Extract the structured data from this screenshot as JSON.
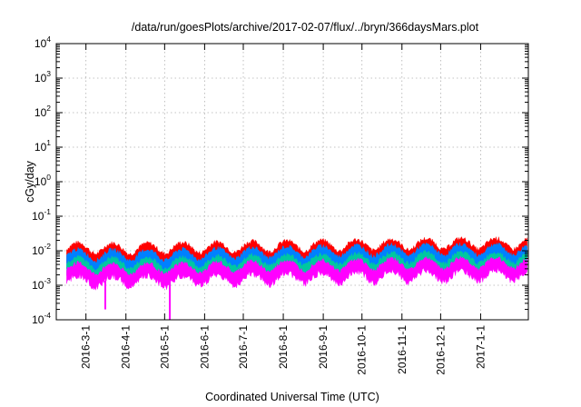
{
  "chart_data": {
    "type": "area",
    "title": "/data/run/goesPlots/archive/2017-02-07/flux/../bryn/366daysMars.plot",
    "xlabel": "Coordinated Universal Time (UTC)",
    "ylabel": "cGy/day",
    "yscale": "log",
    "ylim": [
      0.0001,
      10000
    ],
    "y_ticks": [
      {
        "base": "10",
        "exp": "-4",
        "value": 0.0001
      },
      {
        "base": "10",
        "exp": "-3",
        "value": 0.001
      },
      {
        "base": "10",
        "exp": "-2",
        "value": 0.01
      },
      {
        "base": "10",
        "exp": "-1",
        "value": 0.1
      },
      {
        "base": "10",
        "exp": "0",
        "value": 1
      },
      {
        "base": "10",
        "exp": "1",
        "value": 10
      },
      {
        "base": "10",
        "exp": "2",
        "value": 100
      },
      {
        "base": "10",
        "exp": "3",
        "value": 1000
      },
      {
        "base": "10",
        "exp": "4",
        "value": 10000
      }
    ],
    "xlim": [
      "2016-02-07",
      "2017-02-07"
    ],
    "x_ticks": [
      {
        "label": "2016-3-1",
        "date": "2016-03-01"
      },
      {
        "label": "2016-4-1",
        "date": "2016-04-01"
      },
      {
        "label": "2016-5-1",
        "date": "2016-05-01"
      },
      {
        "label": "2016-6-1",
        "date": "2016-06-01"
      },
      {
        "label": "2016-7-1",
        "date": "2016-07-01"
      },
      {
        "label": "2016-8-1",
        "date": "2016-08-01"
      },
      {
        "label": "2016-9-1",
        "date": "2016-09-01"
      },
      {
        "label": "2016-10-1",
        "date": "2016-10-01"
      },
      {
        "label": "2016-11-1",
        "date": "2016-11-01"
      },
      {
        "label": "2016-12-1",
        "date": "2016-12-01"
      },
      {
        "label": "2017-1-1",
        "date": "2017-01-01"
      }
    ],
    "grid": true,
    "series": [
      {
        "color": "#ff0000",
        "points": [
          [
            "2016-02-15",
            0.011
          ],
          [
            "2016-03-15",
            0.0105
          ],
          [
            "2016-04-15",
            0.0105
          ],
          [
            "2016-05-15",
            0.011
          ],
          [
            "2016-06-15",
            0.0115
          ],
          [
            "2016-07-15",
            0.012
          ],
          [
            "2016-08-15",
            0.0125
          ],
          [
            "2016-09-15",
            0.013
          ],
          [
            "2016-10-15",
            0.0135
          ],
          [
            "2016-11-15",
            0.014
          ],
          [
            "2016-12-15",
            0.0145
          ],
          [
            "2017-01-15",
            0.0145
          ],
          [
            "2017-02-06",
            0.0145
          ]
        ]
      },
      {
        "color": "#0080ff",
        "points": [
          [
            "2016-02-15",
            0.007
          ],
          [
            "2016-03-15",
            0.0068
          ],
          [
            "2016-04-15",
            0.0068
          ],
          [
            "2016-05-15",
            0.007
          ],
          [
            "2016-06-15",
            0.0075
          ],
          [
            "2016-07-15",
            0.008
          ],
          [
            "2016-08-15",
            0.0085
          ],
          [
            "2016-09-15",
            0.009
          ],
          [
            "2016-10-15",
            0.0093
          ],
          [
            "2016-11-15",
            0.0095
          ],
          [
            "2016-12-15",
            0.0097
          ],
          [
            "2017-01-15",
            0.0098
          ],
          [
            "2017-02-06",
            0.0098
          ]
        ]
      },
      {
        "color": "#00c8a0",
        "points": [
          [
            "2016-02-15",
            0.0042
          ],
          [
            "2016-03-15",
            0.004
          ],
          [
            "2016-04-15",
            0.004
          ],
          [
            "2016-05-15",
            0.0042
          ],
          [
            "2016-06-15",
            0.0045
          ],
          [
            "2016-07-15",
            0.0048
          ],
          [
            "2016-08-15",
            0.005
          ],
          [
            "2016-09-15",
            0.0052
          ],
          [
            "2016-10-15",
            0.0055
          ],
          [
            "2016-11-15",
            0.0057
          ],
          [
            "2016-12-15",
            0.0058
          ],
          [
            "2017-01-15",
            0.0058
          ],
          [
            "2017-02-06",
            0.0058
          ]
        ]
      },
      {
        "color": "#ff00ff",
        "points": [
          [
            "2016-02-15",
            0.0028
          ],
          [
            "2016-03-15",
            0.0027
          ],
          [
            "2016-04-15",
            0.0027
          ],
          [
            "2016-05-15",
            0.0028
          ],
          [
            "2016-06-15",
            0.003
          ],
          [
            "2016-07-15",
            0.0032
          ],
          [
            "2016-08-15",
            0.0034
          ],
          [
            "2016-09-15",
            0.0035
          ],
          [
            "2016-10-15",
            0.0037
          ],
          [
            "2016-11-15",
            0.0038
          ],
          [
            "2016-12-15",
            0.0039
          ],
          [
            "2017-01-15",
            0.004
          ],
          [
            "2017-02-06",
            0.004
          ]
        ]
      }
    ],
    "magenta_dips": [
      {
        "date": "2016-03-16",
        "value": 0.0002
      },
      {
        "date": "2016-05-05",
        "value": 0.0001
      }
    ]
  }
}
